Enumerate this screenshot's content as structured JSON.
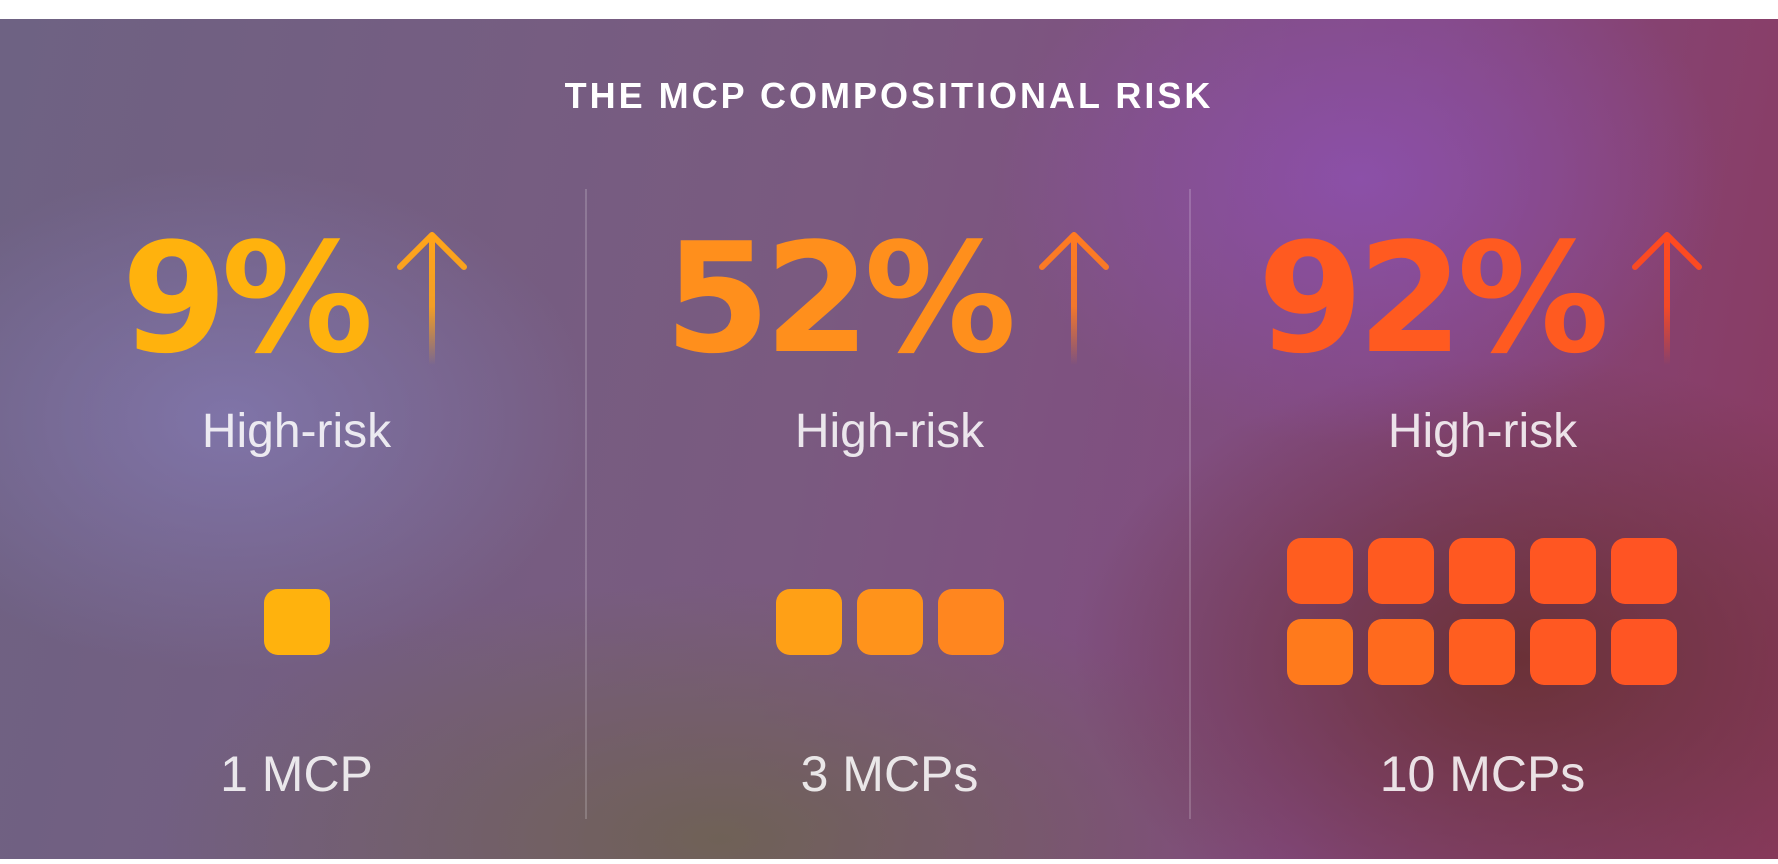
{
  "title": "THE MCP COMPOSITIONAL RISK",
  "columns": [
    {
      "percent": "9%",
      "label": "High-risk",
      "mcp_count": 1,
      "count_label": "1 MCP",
      "color": "#ffb20d",
      "arrow_color": "#ffa51a"
    },
    {
      "percent": "52%",
      "label": "High-risk",
      "mcp_count": 3,
      "count_label": "3 MCPs",
      "color": "#ff8f1c",
      "arrow_color": "#ff7b22"
    },
    {
      "percent": "92%",
      "label": "High-risk",
      "mcp_count": 10,
      "count_label": "10 MCPs",
      "color": "#ff5a20",
      "arrow_color": "#ff4a1f"
    }
  ]
}
